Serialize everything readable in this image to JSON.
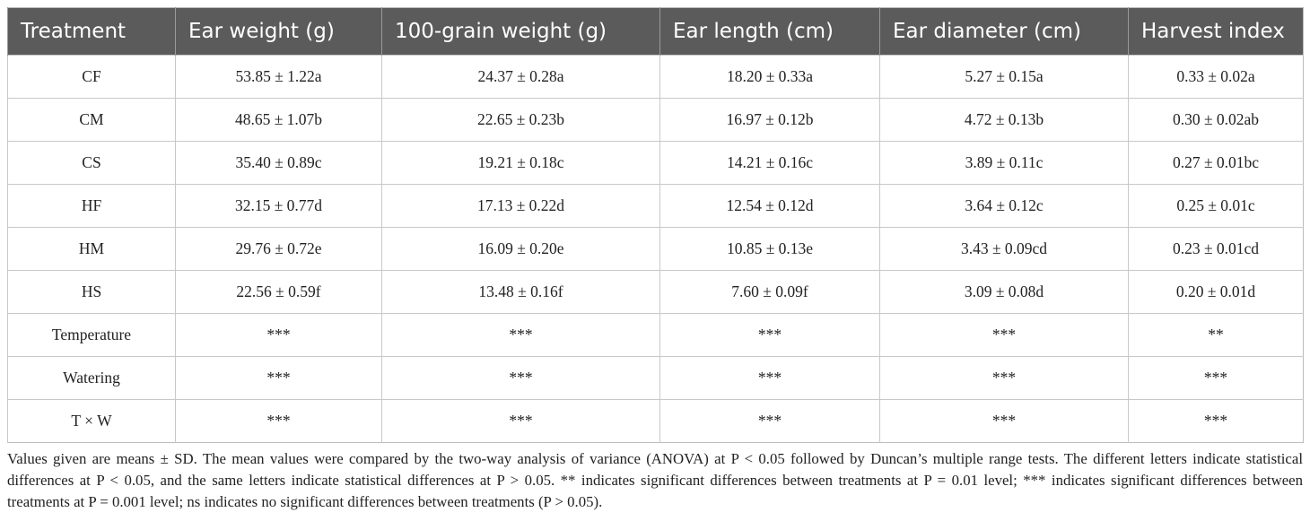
{
  "table": {
    "columns": [
      "Treatment",
      "Ear weight (g)",
      "100-grain weight (g)",
      "Ear length (cm)",
      "Ear diameter (cm)",
      "Harvest index"
    ],
    "rows": [
      [
        "CF",
        "53.85 ± 1.22a",
        "24.37 ± 0.28a",
        "18.20 ± 0.33a",
        "5.27 ± 0.15a",
        "0.33 ± 0.02a"
      ],
      [
        "CM",
        "48.65 ± 1.07b",
        "22.65 ± 0.23b",
        "16.97 ± 0.12b",
        "4.72 ± 0.13b",
        "0.30 ± 0.02ab"
      ],
      [
        "CS",
        "35.40 ± 0.89c",
        "19.21 ± 0.18c",
        "14.21 ± 0.16c",
        "3.89 ± 0.11c",
        "0.27 ± 0.01bc"
      ],
      [
        "HF",
        "32.15 ± 0.77d",
        "17.13 ± 0.22d",
        "12.54 ± 0.12d",
        "3.64 ± 0.12c",
        "0.25 ± 0.01c"
      ],
      [
        "HM",
        "29.76 ± 0.72e",
        "16.09 ± 0.20e",
        "10.85 ± 0.13e",
        "3.43 ± 0.09cd",
        "0.23 ± 0.01cd"
      ],
      [
        "HS",
        "22.56 ± 0.59f",
        "13.48 ± 0.16f",
        "7.60 ± 0.09f",
        "3.09 ± 0.08d",
        "0.20 ± 0.01d"
      ],
      [
        "Temperature",
        "***",
        "***",
        "***",
        "***",
        "**"
      ],
      [
        "Watering",
        "***",
        "***",
        "***",
        "***",
        "***"
      ],
      [
        "T × W",
        "***",
        "***",
        "***",
        "***",
        "***"
      ]
    ]
  },
  "footnote": "Values given are means ± SD. The mean values were compared by the two-way analysis of variance (ANOVA) at P < 0.05 followed by Duncan’s multiple range tests. The different letters indicate statistical differences at P < 0.05, and the same letters indicate statistical differences at P > 0.05. ** indicates significant differences between treatments at P = 0.01 level; *** indicates significant differences between treatments at P = 0.001 level; ns indicates no significant differences between treatments (P > 0.05)."
}
